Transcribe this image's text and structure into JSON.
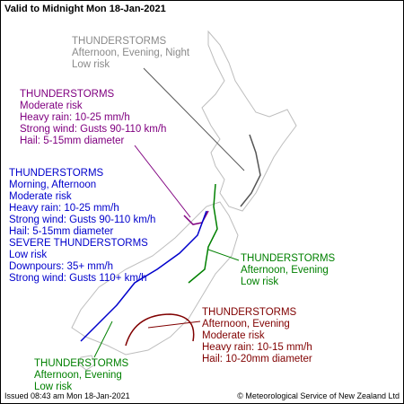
{
  "header": {
    "title": "Valid to Midnight Mon 18-Jan-2021"
  },
  "areas": [
    {
      "color": "#8a8a8a",
      "lines": [
        "THUNDERSTORMS",
        "Afternoon, Evening, Night",
        "Low risk"
      ]
    },
    {
      "color": "#800080",
      "lines": [
        "THUNDERSTORMS",
        "Moderate risk",
        "Heavy rain: 10-25 mm/h",
        "Strong wind: Gusts 90-110 km/h",
        "Hail: 5-15mm diameter"
      ]
    },
    {
      "color": "#0000cc",
      "lines": [
        "THUNDERSTORMS",
        "Morning, Afternoon",
        "Moderate risk",
        "Heavy rain: 10-25 mm/h",
        "Strong wind: Gusts 90-110 km/h",
        "Hail: 5-15mm diameter",
        "SEVERE THUNDERSTORMS",
        "Low risk",
        "Downpours: 35+ mm/h",
        "Strong wind: Gusts 110+ km/h"
      ]
    },
    {
      "color": "#008000",
      "lines": [
        "THUNDERSTORMS",
        "Afternoon, Evening",
        "Low risk"
      ]
    },
    {
      "color": "#800000",
      "lines": [
        "THUNDERSTORMS",
        "Afternoon, Evening",
        "Moderate risk",
        "Heavy rain: 10-15 mm/h",
        "Hail: 10-20mm diameter"
      ]
    },
    {
      "color": "#008000",
      "lines": [
        "THUNDERSTORMS",
        "Afternoon, Evening",
        "Low risk"
      ]
    }
  ],
  "footer": {
    "issued": "Issued 08:43 am Mon 18-Jan-2021",
    "credit": "© Meteorological Service of New Zealand Ltd"
  }
}
